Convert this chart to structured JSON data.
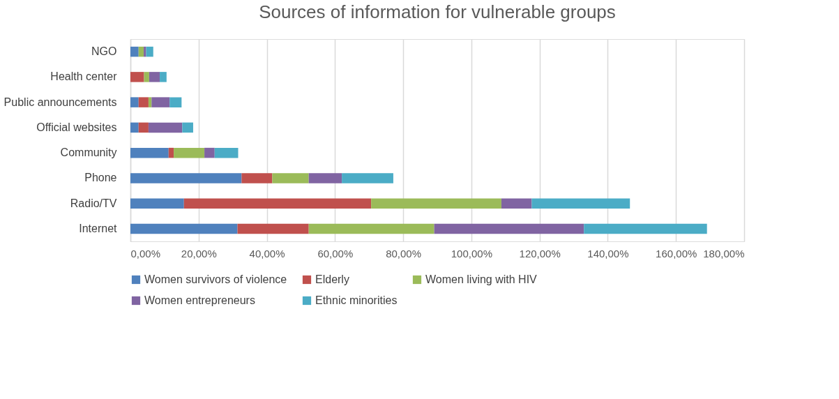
{
  "chart_data": {
    "type": "bar",
    "orientation": "horizontal",
    "stacked": true,
    "title": "Sources of information for vulnerable groups",
    "categories": [
      "NGO",
      "Health center",
      "Public announcements",
      "Official websites",
      "Community",
      "Phone",
      "Radio/TV",
      "Internet"
    ],
    "series": [
      {
        "name": "Women survivors of violence",
        "color": "#4f81bd",
        "values": [
          2.4,
          0,
          2.4,
          2.4,
          11.2,
          32.6,
          15.7,
          31.4
        ]
      },
      {
        "name": "Elderly",
        "color": "#c0504d",
        "values": [
          0,
          4.0,
          2.9,
          2.9,
          1.5,
          9.0,
          54.9,
          20.9
        ]
      },
      {
        "name": "Women living with HIV",
        "color": "#9bbb59",
        "values": [
          1.5,
          1.5,
          0.9,
          0,
          9.0,
          10.7,
          38.2,
          36.8
        ]
      },
      {
        "name": "Women entrepreneurs",
        "color": "#8064a2",
        "values": [
          0.7,
          3.1,
          5.3,
          9.9,
          3.0,
          9.7,
          8.9,
          43.9
        ]
      },
      {
        "name": "Ethnic minorities",
        "color": "#4bacc6",
        "values": [
          2.1,
          2.0,
          3.5,
          3.2,
          6.9,
          15.1,
          28.8,
          36.1
        ]
      }
    ],
    "xlim": [
      0,
      180
    ],
    "xticks": [
      {
        "value": 0,
        "label": "0,00%"
      },
      {
        "value": 20,
        "label": "20,00%"
      },
      {
        "value": 40,
        "label": "40,00%"
      },
      {
        "value": 60,
        "label": "60,00%"
      },
      {
        "value": 80,
        "label": "80,00%"
      },
      {
        "value": 100,
        "label": "100,00%"
      },
      {
        "value": 120,
        "label": "120,00%"
      },
      {
        "value": 140,
        "label": "140,00%"
      },
      {
        "value": 160,
        "label": "160,00%"
      },
      {
        "value": 180,
        "label": "180,00%"
      }
    ],
    "grid": "x",
    "legend": "bottom"
  }
}
